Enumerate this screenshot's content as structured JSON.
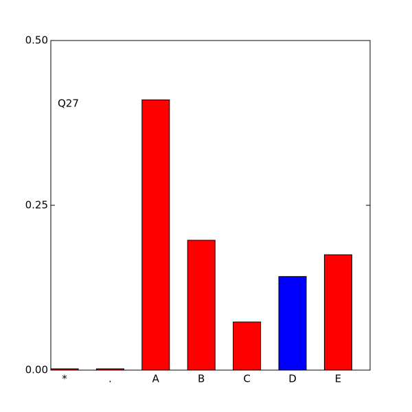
{
  "chart_data": {
    "type": "bar",
    "annotation": "Q27",
    "categories": [
      "*",
      ".",
      "A",
      "B",
      "C",
      "D",
      "E"
    ],
    "values": [
      0.002,
      0.002,
      0.41,
      0.197,
      0.073,
      0.142,
      0.175
    ],
    "colors": [
      "#ff0000",
      "#ff0000",
      "#ff0000",
      "#ff0000",
      "#ff0000",
      "#0000ff",
      "#ff0000"
    ],
    "ylim": [
      0,
      0.5
    ],
    "yticks": [
      {
        "value": 0,
        "label": "0.00"
      },
      {
        "value": 0.25,
        "label": "0.25"
      },
      {
        "value": 0.5,
        "label": "0.50"
      }
    ],
    "grid": false
  }
}
